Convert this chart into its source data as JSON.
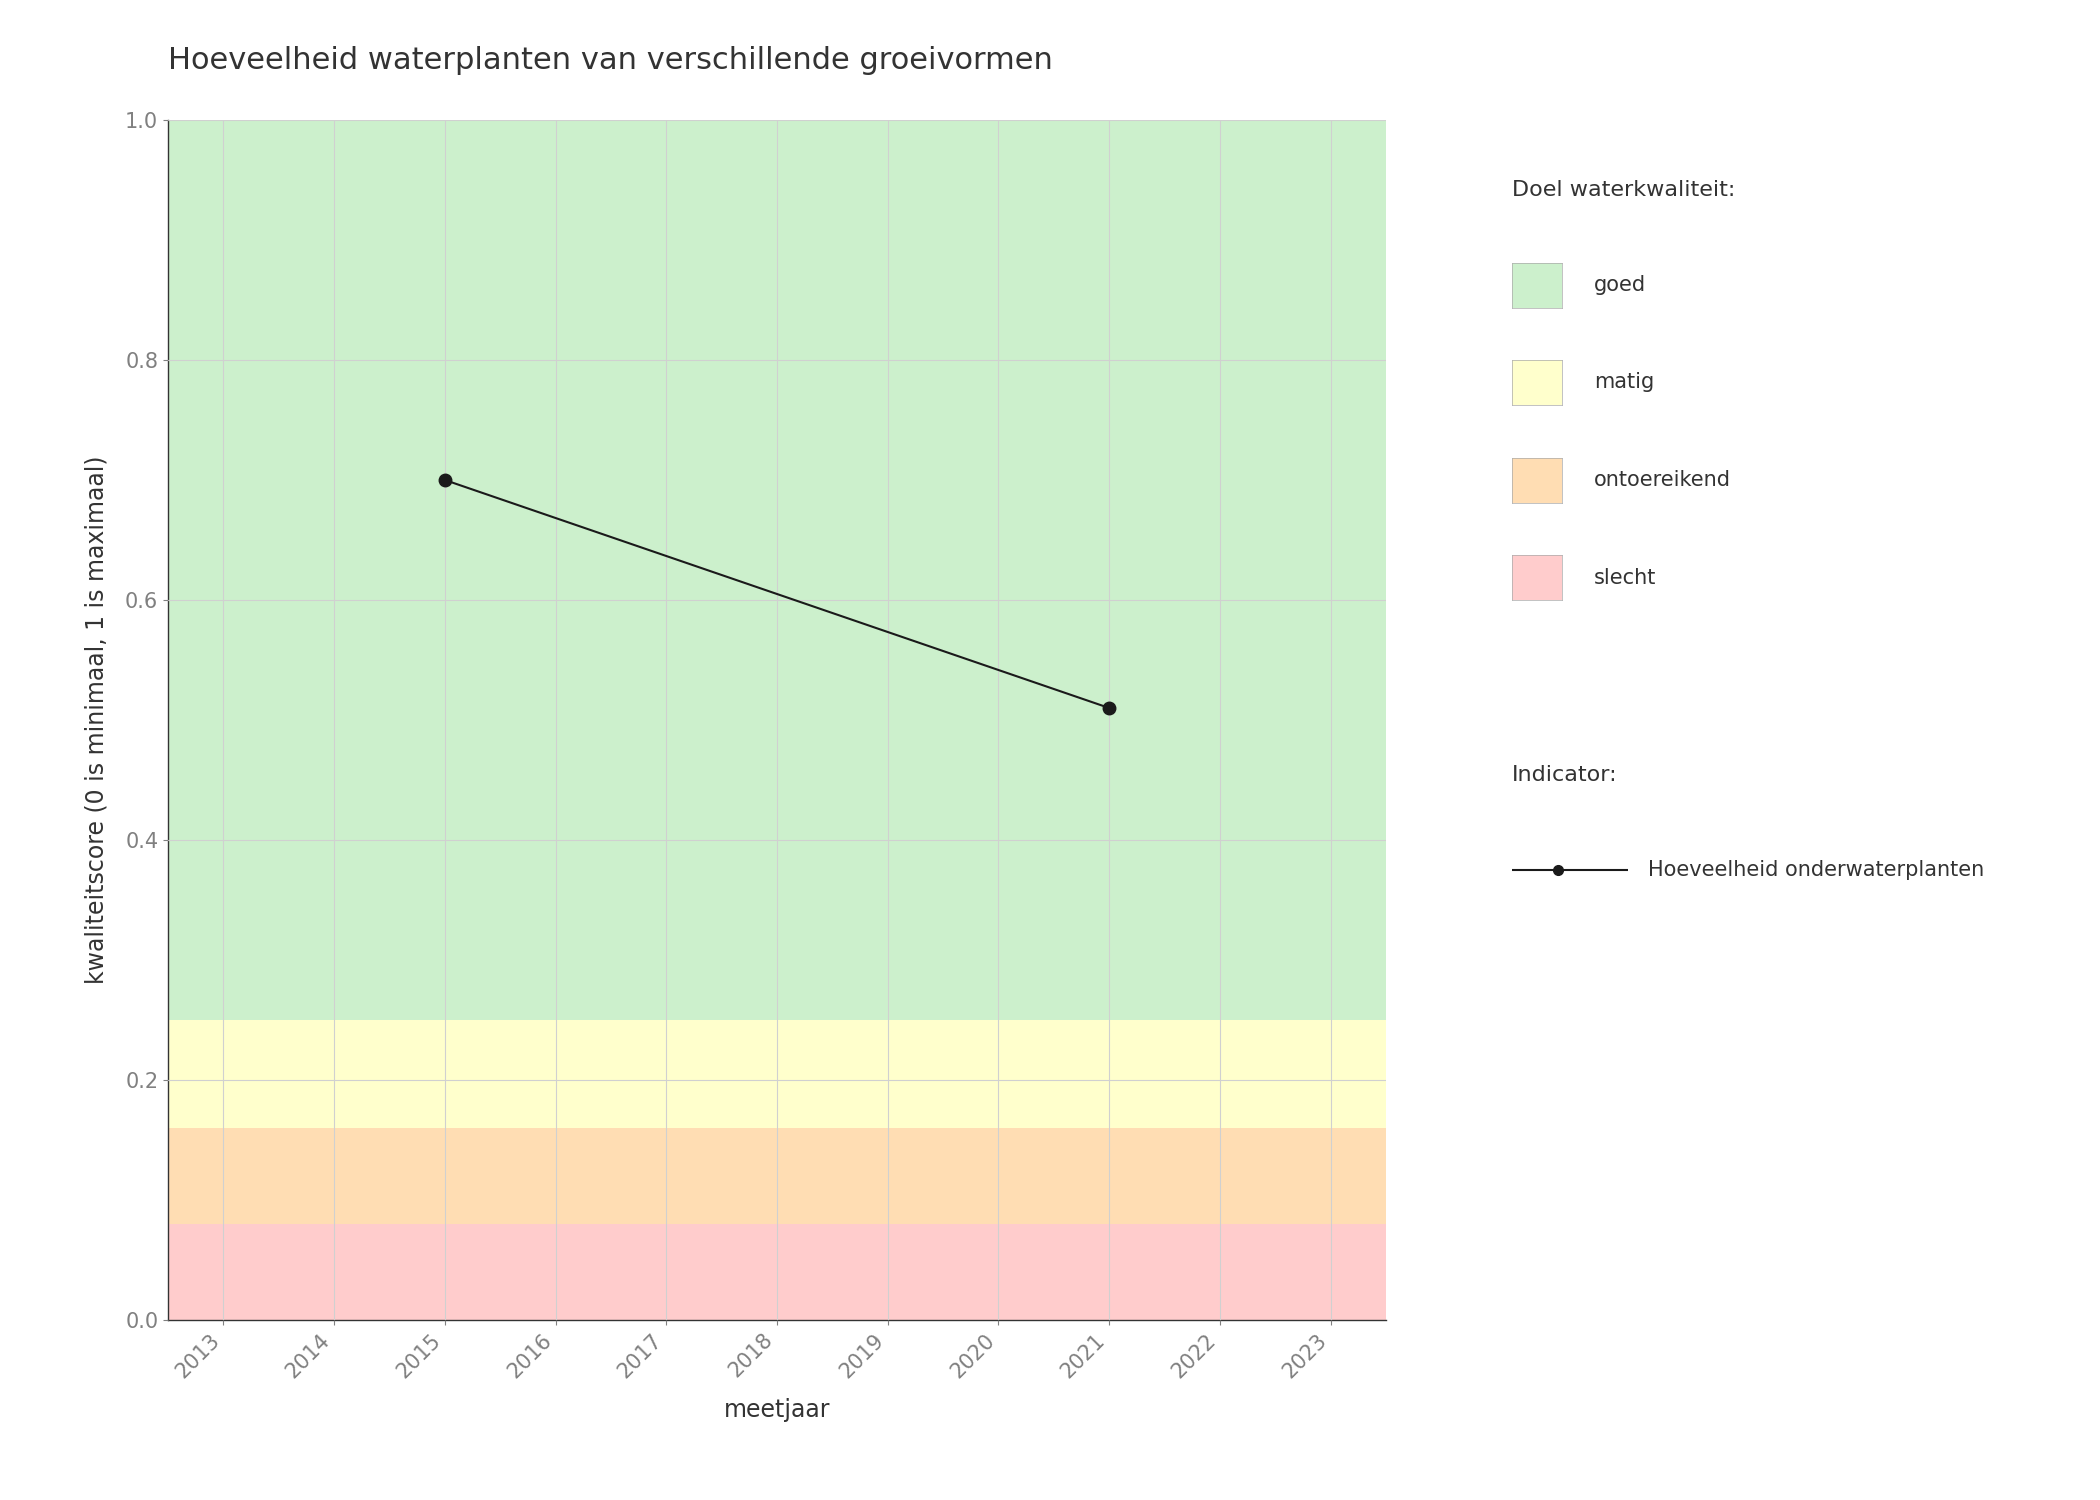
{
  "title": "Hoeveelheid waterplanten van verschillende groeivormen",
  "xlabel": "meetjaar",
  "ylabel": "kwaliteitscore (0 is minimaal, 1 is maximaal)",
  "xlim": [
    2012.5,
    2023.5
  ],
  "ylim": [
    0.0,
    1.0
  ],
  "xticks": [
    2013,
    2014,
    2015,
    2016,
    2017,
    2018,
    2019,
    2020,
    2021,
    2022,
    2023
  ],
  "yticks": [
    0.0,
    0.2,
    0.4,
    0.6,
    0.8,
    1.0
  ],
  "data_x": [
    2015,
    2021
  ],
  "data_y": [
    0.7,
    0.51
  ],
  "line_color": "#1a1a1a",
  "marker_color": "#1a1a1a",
  "marker_size": 9,
  "line_width": 1.5,
  "bands": [
    {
      "ymin": 0.0,
      "ymax": 0.08,
      "color": "#ffcccc",
      "label": "slecht"
    },
    {
      "ymin": 0.08,
      "ymax": 0.16,
      "color": "#ffddb3",
      "label": "ontoereikend"
    },
    {
      "ymin": 0.16,
      "ymax": 0.25,
      "color": "#ffffcc",
      "label": "matig_low"
    },
    {
      "ymin": 0.25,
      "ymax": 1.0,
      "color": "#ccf0cc",
      "label": "goed"
    }
  ],
  "bands_display": [
    {
      "ymin": 0.0,
      "ymax": 0.08,
      "color": "#ffcccc",
      "label": "slecht"
    },
    {
      "ymin": 0.08,
      "ymax": 0.25,
      "color": "#ffffcc",
      "label": "matig"
    },
    {
      "ymin": 0.08,
      "ymax": 0.16,
      "color": "#ffddb3",
      "label": "ontoereikend"
    },
    {
      "ymin": 0.25,
      "ymax": 1.0,
      "color": "#ccf0cc",
      "label": "goed"
    }
  ],
  "legend_bands": [
    {
      "color": "#ccf0cc",
      "label": "goed"
    },
    {
      "color": "#ffffcc",
      "label": "matig"
    },
    {
      "color": "#ffddb3",
      "label": "ontoereikend"
    },
    {
      "color": "#ffcccc",
      "label": "slecht"
    }
  ],
  "legend_quality_title": "Doel waterkwaliteit:",
  "legend_indicator_title": "Indicator:",
  "legend_indicator_label": "Hoeveelheid onderwaterplanten",
  "background_color": "#ffffff",
  "grid_color": "#d0d0d0",
  "tick_label_color": "#808080",
  "axis_label_color": "#333333",
  "title_color": "#333333",
  "title_fontsize": 22,
  "axis_label_fontsize": 17,
  "tick_fontsize": 15,
  "legend_fontsize": 15,
  "legend_title_fontsize": 16
}
